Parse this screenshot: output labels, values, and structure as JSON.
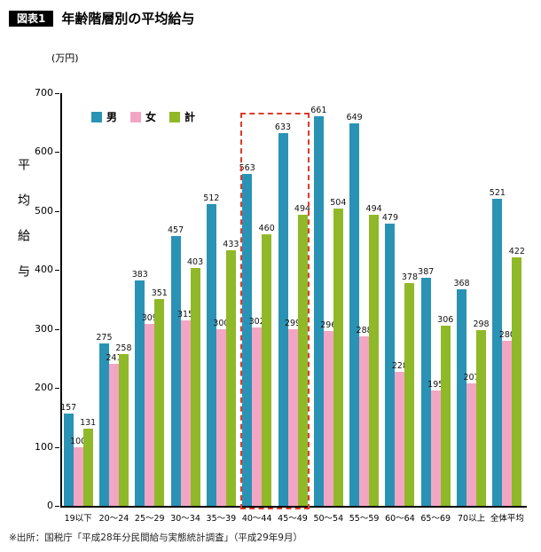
{
  "header": {
    "tag": "図表1",
    "title": "年齢階層別の平均給与"
  },
  "unit_label": "(万円)",
  "y_axis_label": "平均給与",
  "footer": "※出所：国税庁「平成28年分民間給与実態統計調査」（平成29年9月）",
  "colors": {
    "male": "#2a93b5",
    "female": "#f3a6c4",
    "total": "#8fb928",
    "highlight": "#dd3b2a"
  },
  "chart_data": {
    "type": "bar",
    "categories": [
      "19以下",
      "20〜24",
      "25〜29",
      "30〜34",
      "35〜39",
      "40〜44",
      "45〜49",
      "50〜54",
      "55〜59",
      "60〜64",
      "65〜69",
      "70以上",
      "全体平均"
    ],
    "series": [
      {
        "name": "男",
        "color_key": "male",
        "values": [
          157,
          275,
          383,
          457,
          512,
          563,
          633,
          661,
          649,
          479,
          387,
          368,
          521
        ]
      },
      {
        "name": "女",
        "color_key": "female",
        "values": [
          100,
          241,
          309,
          315,
          300,
          302,
          299,
          296,
          288,
          228,
          195,
          207,
          280
        ]
      },
      {
        "name": "計",
        "color_key": "total",
        "values": [
          131,
          258,
          351,
          403,
          433,
          460,
          494,
          504,
          494,
          378,
          306,
          298,
          422
        ]
      }
    ],
    "title": "年齢階層別の平均給与",
    "xlabel": "",
    "ylabel": "平均給与",
    "ylim": [
      0,
      700
    ],
    "yticks": [
      0,
      100,
      200,
      300,
      400,
      500,
      600,
      700
    ],
    "grid": false,
    "legend_position": "top-left-inside",
    "highlight_range": {
      "categories": [
        "40〜44",
        "45〜49"
      ],
      "style": "red-dashed"
    }
  }
}
